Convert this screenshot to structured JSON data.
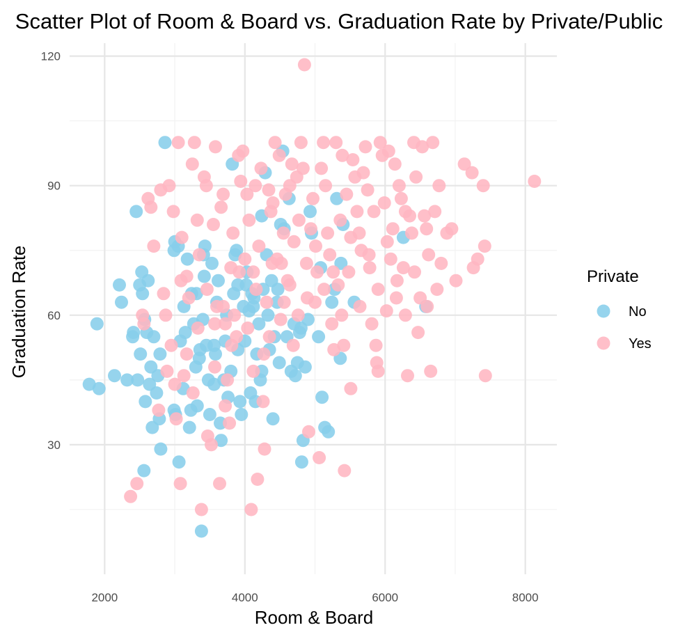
{
  "chart_data": {
    "type": "scatter",
    "title": "Scatter Plot of Room & Board vs. Graduation Rate by Private/Public",
    "xlabel": "Room & Board",
    "ylabel": "Graduation Rate",
    "xlim": [
      1500,
      8450
    ],
    "ylim": [
      0,
      123
    ],
    "x_ticks": [
      2000,
      4000,
      6000,
      8000
    ],
    "y_ticks": [
      30,
      60,
      90,
      120
    ],
    "grid": true,
    "legend": {
      "title": "Private",
      "position": "right"
    },
    "series": [
      {
        "name": "No",
        "color": "#87CEEB",
        "points": [
          [
            1780,
            44
          ],
          [
            1920,
            43
          ],
          [
            1890,
            58
          ],
          [
            2140,
            46
          ],
          [
            2320,
            45
          ],
          [
            2470,
            45
          ],
          [
            2210,
            67
          ],
          [
            2240,
            63
          ],
          [
            2400,
            55
          ],
          [
            2410,
            56
          ],
          [
            2510,
            51
          ],
          [
            2560,
            24
          ],
          [
            2580,
            40
          ],
          [
            2640,
            44
          ],
          [
            2660,
            48
          ],
          [
            2680,
            34
          ],
          [
            2740,
            42
          ],
          [
            2780,
            36
          ],
          [
            2800,
            29
          ],
          [
            2760,
            46
          ],
          [
            2790,
            51
          ],
          [
            2700,
            55
          ],
          [
            2600,
            56
          ],
          [
            2570,
            59
          ],
          [
            2540,
            65
          ],
          [
            2500,
            67
          ],
          [
            2530,
            70
          ],
          [
            2620,
            68
          ],
          [
            2450,
            84
          ],
          [
            2860,
            100
          ],
          [
            2990,
            75
          ],
          [
            3000,
            77
          ],
          [
            3050,
            76
          ],
          [
            3010,
            37
          ],
          [
            2990,
            38
          ],
          [
            3060,
            26
          ],
          [
            3120,
            43
          ],
          [
            3150,
            56
          ],
          [
            3080,
            54
          ],
          [
            3130,
            62
          ],
          [
            3180,
            73
          ],
          [
            3210,
            34
          ],
          [
            3230,
            38
          ],
          [
            3270,
            58
          ],
          [
            3300,
            48
          ],
          [
            3310,
            65
          ],
          [
            3350,
            50
          ],
          [
            3320,
            39
          ],
          [
            3380,
            10
          ],
          [
            3420,
            69
          ],
          [
            3410,
            74
          ],
          [
            3430,
            76
          ],
          [
            3400,
            59
          ],
          [
            3450,
            53
          ],
          [
            3480,
            45
          ],
          [
            3500,
            37
          ],
          [
            3530,
            72
          ],
          [
            3560,
            44
          ],
          [
            3580,
            51
          ],
          [
            3600,
            63
          ],
          [
            3620,
            68
          ],
          [
            3650,
            35
          ],
          [
            3660,
            31
          ],
          [
            3700,
            45
          ],
          [
            3720,
            54
          ],
          [
            3740,
            60
          ],
          [
            3760,
            41
          ],
          [
            3800,
            47
          ],
          [
            3820,
            95
          ],
          [
            3840,
            65
          ],
          [
            3860,
            74
          ],
          [
            3880,
            75
          ],
          [
            3900,
            67
          ],
          [
            3930,
            40
          ],
          [
            3950,
            37
          ],
          [
            3980,
            62
          ],
          [
            4000,
            54
          ],
          [
            4030,
            70
          ],
          [
            4060,
            61
          ],
          [
            4080,
            42
          ],
          [
            4100,
            65
          ],
          [
            4130,
            64
          ],
          [
            4150,
            40
          ],
          [
            4170,
            51
          ],
          [
            4200,
            58
          ],
          [
            4220,
            45
          ],
          [
            4240,
            83
          ],
          [
            4260,
            66
          ],
          [
            4290,
            93
          ],
          [
            4310,
            74
          ],
          [
            4330,
            60
          ],
          [
            4350,
            52
          ],
          [
            4380,
            68
          ],
          [
            4400,
            36
          ],
          [
            4420,
            55
          ],
          [
            4460,
            63
          ],
          [
            4490,
            49
          ],
          [
            4510,
            81
          ],
          [
            4540,
            98
          ],
          [
            4560,
            80
          ],
          [
            4600,
            55
          ],
          [
            4630,
            87
          ],
          [
            4660,
            47
          ],
          [
            4700,
            58
          ],
          [
            4720,
            46
          ],
          [
            4750,
            49
          ],
          [
            4780,
            56
          ],
          [
            4810,
            26
          ],
          [
            4830,
            31
          ],
          [
            4860,
            48
          ],
          [
            4900,
            59
          ],
          [
            4930,
            84
          ],
          [
            4950,
            79
          ],
          [
            5050,
            55
          ],
          [
            5080,
            71
          ],
          [
            5100,
            41
          ],
          [
            5140,
            34
          ],
          [
            5190,
            33
          ],
          [
            5240,
            63
          ],
          [
            5280,
            66
          ],
          [
            5310,
            87
          ],
          [
            5360,
            50
          ],
          [
            5400,
            81
          ],
          [
            5370,
            72
          ],
          [
            5560,
            63
          ],
          [
            6260,
            78
          ],
          [
            6580,
            62
          ],
          [
            4240,
            47
          ],
          [
            3560,
            53
          ],
          [
            3240,
            65
          ],
          [
            3360,
            52
          ],
          [
            3900,
            52
          ],
          [
            4020,
            67
          ],
          [
            4120,
            62
          ],
          [
            4470,
            66
          ],
          [
            4800,
            57
          ]
        ]
      },
      {
        "name": "Yes",
        "color": "#FFB6C1",
        "points": [
          [
            2370,
            18
          ],
          [
            2460,
            21
          ],
          [
            2540,
            60
          ],
          [
            2560,
            58
          ],
          [
            2620,
            87
          ],
          [
            2660,
            85
          ],
          [
            2700,
            76
          ],
          [
            2770,
            38
          ],
          [
            2800,
            89
          ],
          [
            2840,
            65
          ],
          [
            2870,
            60
          ],
          [
            2920,
            90
          ],
          [
            2950,
            53
          ],
          [
            2980,
            84
          ],
          [
            3000,
            44
          ],
          [
            3020,
            36
          ],
          [
            3050,
            100
          ],
          [
            3080,
            21
          ],
          [
            3100,
            78
          ],
          [
            3130,
            46
          ],
          [
            3170,
            69
          ],
          [
            3200,
            64
          ],
          [
            3250,
            95
          ],
          [
            3280,
            100
          ],
          [
            3320,
            82
          ],
          [
            3350,
            74
          ],
          [
            3380,
            15
          ],
          [
            3420,
            92
          ],
          [
            3450,
            90
          ],
          [
            3470,
            32
          ],
          [
            3520,
            30
          ],
          [
            3550,
            81
          ],
          [
            3580,
            99
          ],
          [
            3600,
            62
          ],
          [
            3640,
            21
          ],
          [
            3660,
            85
          ],
          [
            3690,
            88
          ],
          [
            3720,
            58
          ],
          [
            3750,
            45
          ],
          [
            3780,
            35
          ],
          [
            3800,
            71
          ],
          [
            3830,
            79
          ],
          [
            3850,
            60
          ],
          [
            3880,
            55
          ],
          [
            3910,
            97
          ],
          [
            3940,
            91
          ],
          [
            3970,
            98
          ],
          [
            4000,
            73
          ],
          [
            4030,
            88
          ],
          [
            4060,
            82
          ],
          [
            4090,
            15
          ],
          [
            4120,
            70
          ],
          [
            4150,
            90
          ],
          [
            4180,
            22
          ],
          [
            4200,
            76
          ],
          [
            4230,
            94
          ],
          [
            4260,
            40
          ],
          [
            4280,
            29
          ],
          [
            4310,
            63
          ],
          [
            4340,
            89
          ],
          [
            4370,
            84
          ],
          [
            4400,
            86
          ],
          [
            4430,
            100
          ],
          [
            4460,
            73
          ],
          [
            4490,
            97
          ],
          [
            4520,
            72
          ],
          [
            4550,
            79
          ],
          [
            4580,
            88
          ],
          [
            4610,
            68
          ],
          [
            4640,
            90
          ],
          [
            4670,
            95
          ],
          [
            4700,
            77
          ],
          [
            4740,
            92
          ],
          [
            4770,
            82
          ],
          [
            4800,
            100
          ],
          [
            4830,
            94
          ],
          [
            4850,
            118
          ],
          [
            4880,
            72
          ],
          [
            4910,
            33
          ],
          [
            4940,
            80
          ],
          [
            4970,
            87
          ],
          [
            5000,
            63
          ],
          [
            5030,
            70
          ],
          [
            5060,
            27
          ],
          [
            5090,
            94
          ],
          [
            5120,
            100
          ],
          [
            5150,
            90
          ],
          [
            5180,
            79
          ],
          [
            5210,
            74
          ],
          [
            5240,
            58
          ],
          [
            5270,
            52
          ],
          [
            5300,
            100
          ],
          [
            5330,
            67
          ],
          [
            5360,
            82
          ],
          [
            5390,
            97
          ],
          [
            5420,
            24
          ],
          [
            5450,
            88
          ],
          [
            5480,
            70
          ],
          [
            5510,
            43
          ],
          [
            5540,
            96
          ],
          [
            5570,
            92
          ],
          [
            5600,
            84
          ],
          [
            5630,
            79
          ],
          [
            5660,
            75
          ],
          [
            5690,
            93
          ],
          [
            5720,
            99
          ],
          [
            5750,
            89
          ],
          [
            5780,
            71
          ],
          [
            5810,
            58
          ],
          [
            5840,
            84
          ],
          [
            5870,
            53
          ],
          [
            5900,
            47
          ],
          [
            5930,
            100
          ],
          [
            5960,
            97
          ],
          [
            5990,
            86
          ],
          [
            6020,
            61
          ],
          [
            6050,
            98
          ],
          [
            6080,
            73
          ],
          [
            6110,
            80
          ],
          [
            6140,
            95
          ],
          [
            6170,
            68
          ],
          [
            6200,
            90
          ],
          [
            6230,
            87
          ],
          [
            6260,
            71
          ],
          [
            6290,
            60
          ],
          [
            6320,
            46
          ],
          [
            6350,
            83
          ],
          [
            6380,
            79
          ],
          [
            6410,
            100
          ],
          [
            6440,
            92
          ],
          [
            6470,
            56
          ],
          [
            6500,
            64
          ],
          [
            6530,
            99
          ],
          [
            6560,
            83
          ],
          [
            6590,
            80
          ],
          [
            6620,
            74
          ],
          [
            6650,
            47
          ],
          [
            6680,
            100
          ],
          [
            6710,
            84
          ],
          [
            6740,
            66
          ],
          [
            6770,
            90
          ],
          [
            6800,
            72
          ],
          [
            6880,
            79
          ],
          [
            6950,
            80
          ],
          [
            7010,
            68
          ],
          [
            7130,
            95
          ],
          [
            7240,
            93
          ],
          [
            7260,
            71
          ],
          [
            7320,
            73
          ],
          [
            7400,
            90
          ],
          [
            7420,
            76
          ],
          [
            7430,
            46
          ],
          [
            8130,
            91
          ],
          [
            3090,
            68
          ],
          [
            3170,
            51
          ],
          [
            3330,
            57
          ],
          [
            3460,
            66
          ],
          [
            3570,
            58
          ],
          [
            3690,
            62
          ],
          [
            3810,
            53
          ],
          [
            3920,
            70
          ],
          [
            4040,
            57
          ],
          [
            4160,
            66
          ],
          [
            4270,
            51
          ],
          [
            4390,
            72
          ],
          [
            4510,
            59
          ],
          [
            4640,
            67
          ],
          [
            4760,
            60
          ],
          [
            4890,
            64
          ],
          [
            5010,
            76
          ],
          [
            5130,
            66
          ],
          [
            5260,
            70
          ],
          [
            5380,
            60
          ],
          [
            5510,
            78
          ],
          [
            5640,
            62
          ],
          [
            5770,
            74
          ],
          [
            5900,
            66
          ],
          [
            6030,
            77
          ],
          [
            6160,
            64
          ],
          [
            6290,
            84
          ],
          [
            6420,
            70
          ],
          [
            2890,
            47
          ],
          [
            3260,
            42
          ],
          [
            3570,
            48
          ],
          [
            3720,
            39
          ],
          [
            4120,
            47
          ],
          [
            4350,
            55
          ],
          [
            4560,
            63
          ],
          [
            4690,
            53
          ],
          [
            5410,
            53
          ],
          [
            5880,
            49
          ],
          [
            6600,
            62
          ]
        ]
      }
    ]
  }
}
